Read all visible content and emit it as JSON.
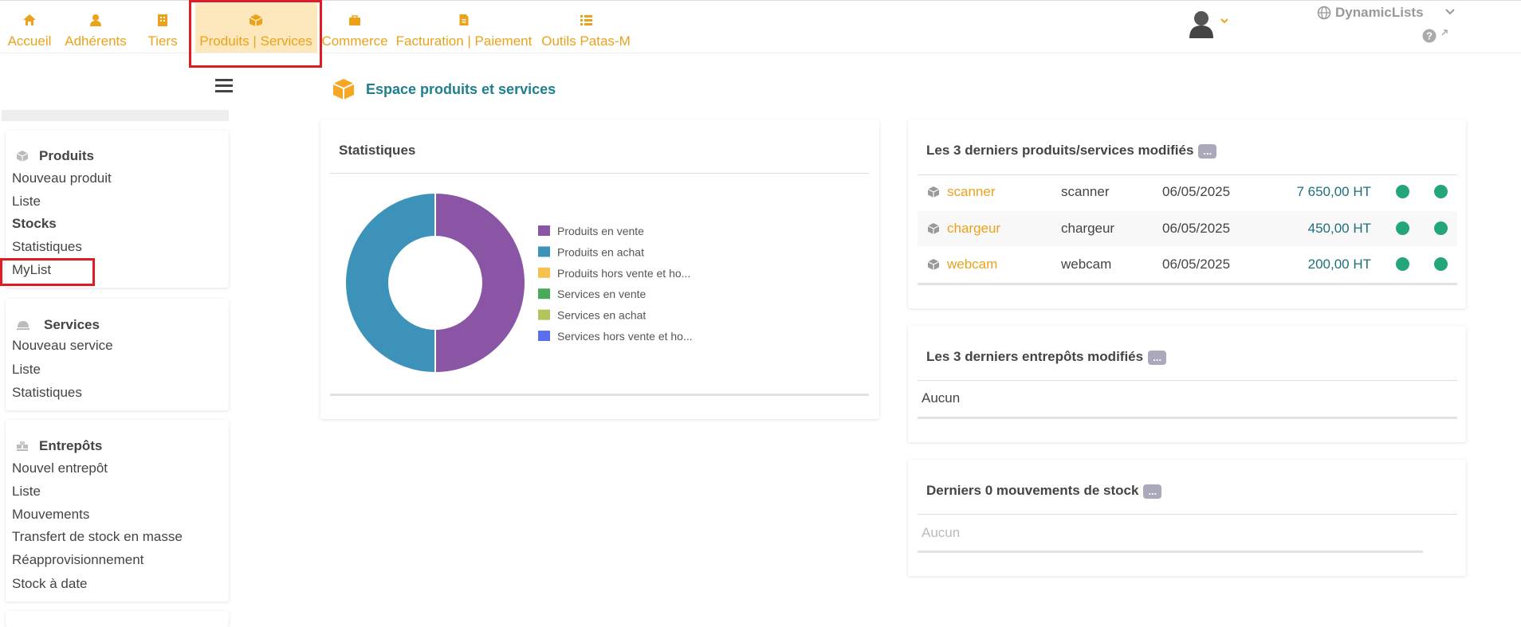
{
  "nav": {
    "items": [
      "Accueil",
      "Adhérents",
      "Tiers",
      "Produits | Services",
      "Commerce",
      "Facturation | Paiement",
      "Outils Patas-M"
    ]
  },
  "user_menu": {
    "database": "DynamicLists"
  },
  "sidebar": {
    "sections": [
      {
        "title": "Produits",
        "items": [
          "Nouveau produit",
          "Liste",
          "Stocks",
          "Statistiques",
          "MyList"
        ]
      },
      {
        "title": "Services",
        "items": [
          "Nouveau service",
          "Liste",
          "Statistiques"
        ]
      },
      {
        "title": "Entrepôts",
        "items": [
          "Nouvel entrepôt",
          "Liste",
          "Mouvements",
          "Transfert de stock en masse",
          "Réapprovisionnement",
          "Stock à date"
        ]
      }
    ]
  },
  "page": {
    "title": "Espace produits et services"
  },
  "statistics": {
    "title": "Statistiques"
  },
  "chart_data": {
    "type": "pie",
    "categories": [
      "Produits en vente",
      "Produits en achat",
      "Produits hors vente et ho...",
      "Services en vente",
      "Services en achat",
      "Services hors vente et ho..."
    ],
    "values": [
      50,
      50,
      0,
      0,
      0,
      0
    ],
    "colors": [
      "#8a55a4",
      "#3c92b8",
      "#f7bf4e",
      "#4aa85a",
      "#b5c45a",
      "#5a6ef0"
    ]
  },
  "last_products": {
    "title": "Les 3 derniers produits/services modifiés",
    "badge": "...",
    "rows": [
      [
        "scanner",
        "scanner",
        "06/05/2025",
        "7 650,00 HT"
      ],
      [
        "chargeur",
        "chargeur",
        "06/05/2025",
        "450,00 HT"
      ],
      [
        "webcam",
        "webcam",
        "06/05/2025",
        "200,00 HT"
      ]
    ]
  },
  "last_warehouses": {
    "title": "Les 3 derniers entrepôts modifiés",
    "badge": "...",
    "empty": "Aucun"
  },
  "stock_movements": {
    "title": "Derniers 0 mouvements de stock",
    "badge": "...",
    "empty": "Aucun"
  }
}
